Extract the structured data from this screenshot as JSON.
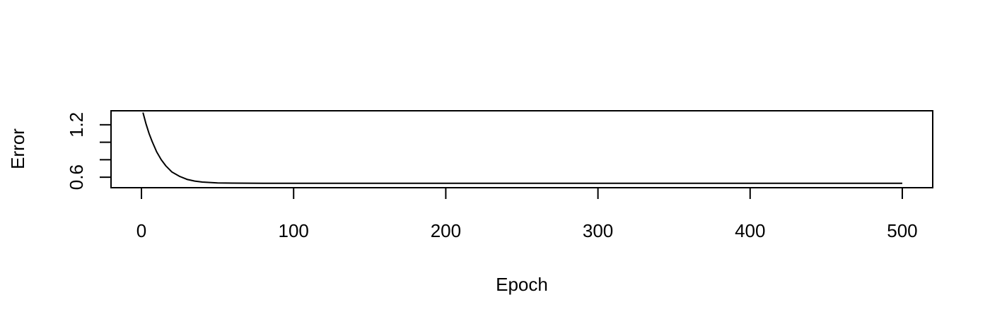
{
  "chart_data": {
    "type": "line",
    "title": "",
    "xlabel": "Epoch",
    "ylabel": "Error",
    "xlim": [
      -20,
      520
    ],
    "ylim": [
      0.48,
      1.36
    ],
    "x_ticks": [
      0,
      100,
      200,
      300,
      400,
      500
    ],
    "x_tick_labels": [
      "0",
      "100",
      "200",
      "300",
      "400",
      "500"
    ],
    "y_ticks": [
      0.6,
      0.8,
      1.0,
      1.2
    ],
    "y_tick_labels": [
      "0.6",
      "",
      "",
      "1.2"
    ],
    "grid": false,
    "legend": "none",
    "line_color": "#000000",
    "series": [
      {
        "x": [
          1,
          3,
          5,
          7,
          10,
          13,
          16,
          20,
          25,
          30,
          35,
          40,
          50,
          60,
          70,
          80,
          100,
          150,
          200,
          250,
          300,
          350,
          400,
          450,
          500
        ],
        "y": [
          1.34,
          1.21,
          1.1,
          1.01,
          0.89,
          0.8,
          0.73,
          0.66,
          0.61,
          0.575,
          0.556,
          0.545,
          0.535,
          0.532,
          0.531,
          0.53,
          0.53,
          0.53,
          0.53,
          0.53,
          0.53,
          0.53,
          0.53,
          0.53,
          0.53
        ]
      }
    ]
  }
}
